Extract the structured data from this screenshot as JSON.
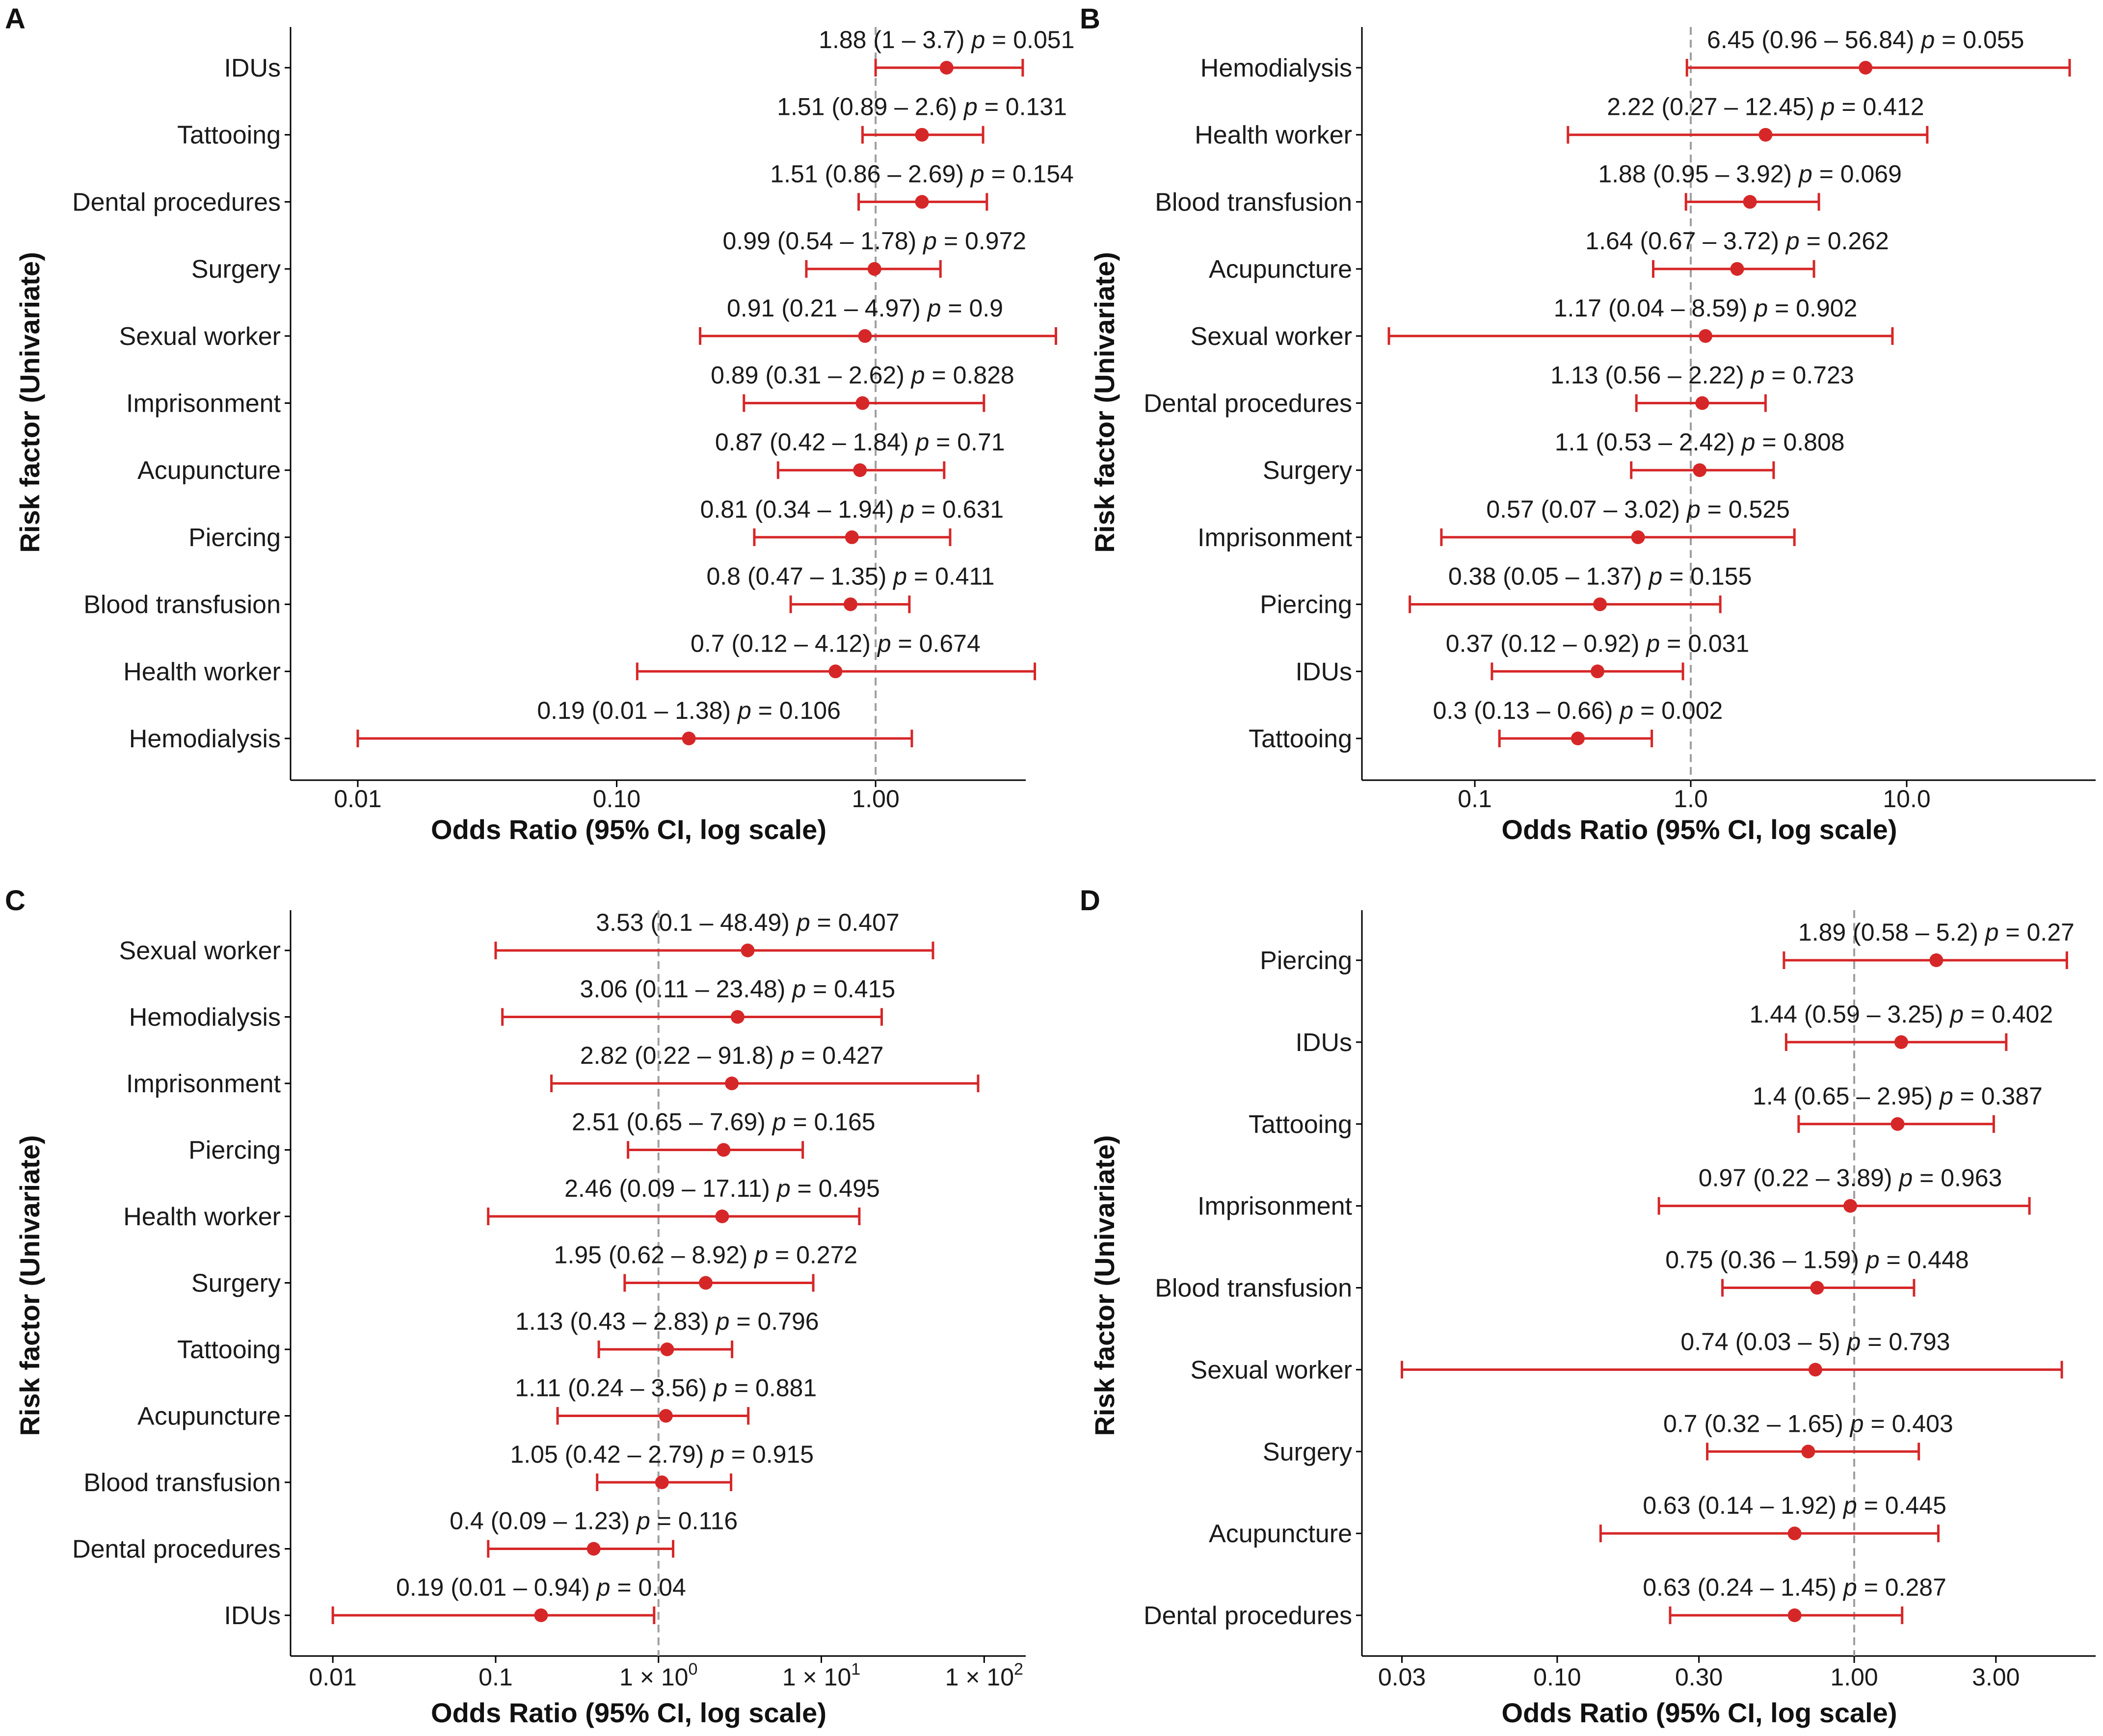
{
  "colors": {
    "marker": "#d62728",
    "axis": "#000000",
    "refline": "#9e9e9e",
    "text": "#1a1a1a"
  },
  "chart_data": [
    {
      "panel": "A",
      "type": "forest",
      "xscale": "log",
      "xlabel": "Odds Ratio (95% CI, log scale)",
      "ylabel": "Risk factor (Univariate)",
      "xlim": [
        0.0055,
        3.8
      ],
      "reference": 1,
      "xticks": [
        {
          "value": 0.01,
          "label": "0.01"
        },
        {
          "value": 0.1,
          "label": "0.10"
        },
        {
          "value": 1,
          "label": "1.00"
        }
      ],
      "rows": [
        {
          "label": "IDUs",
          "or": 1.88,
          "lo": 1,
          "hi": 3.7,
          "text": "1.88 (1 – 3.7)",
          "p": "0.051"
        },
        {
          "label": "Tattooing",
          "or": 1.51,
          "lo": 0.89,
          "hi": 2.6,
          "text": "1.51 (0.89 – 2.6)",
          "p": "0.131"
        },
        {
          "label": "Dental procedures",
          "or": 1.51,
          "lo": 0.86,
          "hi": 2.69,
          "text": "1.51 (0.86 – 2.69)",
          "p": "0.154"
        },
        {
          "label": "Surgery",
          "or": 0.99,
          "lo": 0.54,
          "hi": 1.78,
          "text": "0.99 (0.54 – 1.78)",
          "p": "0.972"
        },
        {
          "label": "Sexual worker",
          "or": 0.91,
          "lo": 0.21,
          "hi": 4.97,
          "text": "0.91 (0.21 – 4.97)",
          "p": "0.9"
        },
        {
          "label": "Imprisonment",
          "or": 0.89,
          "lo": 0.31,
          "hi": 2.62,
          "text": "0.89 (0.31 – 2.62)",
          "p": "0.828"
        },
        {
          "label": "Acupuncture",
          "or": 0.87,
          "lo": 0.42,
          "hi": 1.84,
          "text": "0.87 (0.42 – 1.84)",
          "p": "0.71"
        },
        {
          "label": "Piercing",
          "or": 0.81,
          "lo": 0.34,
          "hi": 1.94,
          "text": "0.81 (0.34 – 1.94)",
          "p": "0.631"
        },
        {
          "label": "Blood transfusion",
          "or": 0.8,
          "lo": 0.47,
          "hi": 1.35,
          "text": "0.8 (0.47 – 1.35)",
          "p": "0.411"
        },
        {
          "label": "Health worker",
          "or": 0.7,
          "lo": 0.12,
          "hi": 4.12,
          "text": "0.7 (0.12 – 4.12)",
          "p": "0.674"
        },
        {
          "label": "Hemodialysis",
          "or": 0.19,
          "lo": 0.01,
          "hi": 1.38,
          "text": "0.19 (0.01 – 1.38)",
          "p": "0.106"
        }
      ]
    },
    {
      "panel": "B",
      "type": "forest",
      "xscale": "log",
      "xlabel": "Odds Ratio (95% CI, log scale)",
      "ylabel": "Risk factor (Univariate)",
      "xlim": [
        0.03,
        75
      ],
      "reference": 1,
      "xticks": [
        {
          "value": 0.1,
          "label": "0.1"
        },
        {
          "value": 1,
          "label": "1.0"
        },
        {
          "value": 10,
          "label": "10.0"
        }
      ],
      "rows": [
        {
          "label": "Hemodialysis",
          "or": 6.45,
          "lo": 0.96,
          "hi": 56.84,
          "text": "6.45 (0.96 – 56.84)",
          "p": "0.055"
        },
        {
          "label": "Health worker",
          "or": 2.22,
          "lo": 0.27,
          "hi": 12.45,
          "text": "2.22 (0.27 – 12.45)",
          "p": "0.412"
        },
        {
          "label": "Blood transfusion",
          "or": 1.88,
          "lo": 0.95,
          "hi": 3.92,
          "text": "1.88 (0.95 – 3.92)",
          "p": "0.069"
        },
        {
          "label": "Acupuncture",
          "or": 1.64,
          "lo": 0.67,
          "hi": 3.72,
          "text": "1.64 (0.67 – 3.72)",
          "p": "0.262"
        },
        {
          "label": "Sexual worker",
          "or": 1.17,
          "lo": 0.04,
          "hi": 8.59,
          "text": "1.17 (0.04 – 8.59)",
          "p": "0.902"
        },
        {
          "label": "Dental procedures",
          "or": 1.13,
          "lo": 0.56,
          "hi": 2.22,
          "text": "1.13 (0.56 – 2.22)",
          "p": "0.723"
        },
        {
          "label": "Surgery",
          "or": 1.1,
          "lo": 0.53,
          "hi": 2.42,
          "text": "1.1 (0.53 – 2.42)",
          "p": "0.808"
        },
        {
          "label": "Imprisonment",
          "or": 0.57,
          "lo": 0.07,
          "hi": 3.02,
          "text": "0.57 (0.07 – 3.02)",
          "p": "0.525"
        },
        {
          "label": "Piercing",
          "or": 0.38,
          "lo": 0.05,
          "hi": 1.37,
          "text": "0.38 (0.05 – 1.37)",
          "p": "0.155"
        },
        {
          "label": "IDUs",
          "or": 0.37,
          "lo": 0.12,
          "hi": 0.92,
          "text": "0.37 (0.12 – 0.92)",
          "p": "0.031"
        },
        {
          "label": "Tattooing",
          "or": 0.3,
          "lo": 0.13,
          "hi": 0.66,
          "text": "0.3 (0.13 – 0.66)",
          "p": "0.002"
        }
      ]
    },
    {
      "panel": "C",
      "type": "forest",
      "xscale": "log",
      "xlabel": "Odds Ratio (95% CI, log scale)",
      "ylabel": "Risk factor (Univariate)",
      "xlim": [
        0.0055,
        180
      ],
      "reference": 1,
      "xticks": [
        {
          "value": 0.01,
          "label": "0.01"
        },
        {
          "value": 0.1,
          "label": "0.1"
        },
        {
          "value": 1,
          "label": "1 × 10",
          "exp": "0"
        },
        {
          "value": 10,
          "label": "1 × 10",
          "exp": "1"
        },
        {
          "value": 100,
          "label": "1 × 10",
          "exp": "2"
        }
      ],
      "rows": [
        {
          "label": "Sexual worker",
          "or": 3.53,
          "lo": 0.1,
          "hi": 48.49,
          "text": "3.53 (0.1 – 48.49)",
          "p": "0.407"
        },
        {
          "label": "Hemodialysis",
          "or": 3.06,
          "lo": 0.11,
          "hi": 23.48,
          "text": "3.06 (0.11 – 23.48)",
          "p": "0.415"
        },
        {
          "label": "Imprisonment",
          "or": 2.82,
          "lo": 0.22,
          "hi": 91.8,
          "text": "2.82 (0.22 – 91.8)",
          "p": "0.427"
        },
        {
          "label": "Piercing",
          "or": 2.51,
          "lo": 0.65,
          "hi": 7.69,
          "text": "2.51 (0.65 – 7.69)",
          "p": "0.165"
        },
        {
          "label": "Health worker",
          "or": 2.46,
          "lo": 0.09,
          "hi": 17.11,
          "text": "2.46 (0.09 – 17.11)",
          "p": "0.495"
        },
        {
          "label": "Surgery",
          "or": 1.95,
          "lo": 0.62,
          "hi": 8.92,
          "text": "1.95 (0.62 – 8.92)",
          "p": "0.272"
        },
        {
          "label": "Tattooing",
          "or": 1.13,
          "lo": 0.43,
          "hi": 2.83,
          "text": "1.13 (0.43 – 2.83)",
          "p": "0.796"
        },
        {
          "label": "Acupuncture",
          "or": 1.11,
          "lo": 0.24,
          "hi": 3.56,
          "text": "1.11 (0.24 – 3.56)",
          "p": "0.881"
        },
        {
          "label": "Blood transfusion",
          "or": 1.05,
          "lo": 0.42,
          "hi": 2.79,
          "text": "1.05 (0.42 – 2.79)",
          "p": "0.915"
        },
        {
          "label": "Dental procedures",
          "or": 0.4,
          "lo": 0.09,
          "hi": 1.23,
          "text": "0.4 (0.09 – 1.23)",
          "p": "0.116"
        },
        {
          "label": "IDUs",
          "or": 0.19,
          "lo": 0.01,
          "hi": 0.94,
          "text": "0.19 (0.01 – 0.94)",
          "p": "0.04"
        }
      ]
    },
    {
      "panel": "D",
      "type": "forest",
      "xscale": "log",
      "xlabel": "Odds Ratio (95% CI, log scale)",
      "ylabel": "Risk factor (Univariate)",
      "xlim": [
        0.022,
        6.5
      ],
      "reference": 1,
      "xticks": [
        {
          "value": 0.03,
          "label": "0.03"
        },
        {
          "value": 0.1,
          "label": "0.10"
        },
        {
          "value": 0.3,
          "label": "0.30"
        },
        {
          "value": 1,
          "label": "1.00"
        },
        {
          "value": 3,
          "label": "3.00"
        }
      ],
      "rows": [
        {
          "label": "Piercing",
          "or": 1.89,
          "lo": 0.58,
          "hi": 5.2,
          "text": "1.89 (0.58 – 5.2)",
          "p": "0.27"
        },
        {
          "label": "IDUs",
          "or": 1.44,
          "lo": 0.59,
          "hi": 3.25,
          "text": "1.44 (0.59 – 3.25)",
          "p": "0.402"
        },
        {
          "label": "Tattooing",
          "or": 1.4,
          "lo": 0.65,
          "hi": 2.95,
          "text": "1.4 (0.65 – 2.95)",
          "p": "0.387"
        },
        {
          "label": "Imprisonment",
          "or": 0.97,
          "lo": 0.22,
          "hi": 3.89,
          "text": "0.97 (0.22 – 3.89)",
          "p": "0.963"
        },
        {
          "label": "Blood transfusion",
          "or": 0.75,
          "lo": 0.36,
          "hi": 1.59,
          "text": "0.75 (0.36 – 1.59)",
          "p": "0.448"
        },
        {
          "label": "Sexual worker",
          "or": 0.74,
          "lo": 0.03,
          "hi": 5,
          "text": "0.74 (0.03 – 5)",
          "p": "0.793"
        },
        {
          "label": "Surgery",
          "or": 0.7,
          "lo": 0.32,
          "hi": 1.65,
          "text": "0.7 (0.32 – 1.65)",
          "p": "0.403"
        },
        {
          "label": "Acupuncture",
          "or": 0.63,
          "lo": 0.14,
          "hi": 1.92,
          "text": "0.63 (0.14 – 1.92)",
          "p": "0.445"
        },
        {
          "label": "Dental procedures",
          "or": 0.63,
          "lo": 0.24,
          "hi": 1.45,
          "text": "0.63 (0.24 – 1.45)",
          "p": "0.287"
        }
      ]
    }
  ]
}
